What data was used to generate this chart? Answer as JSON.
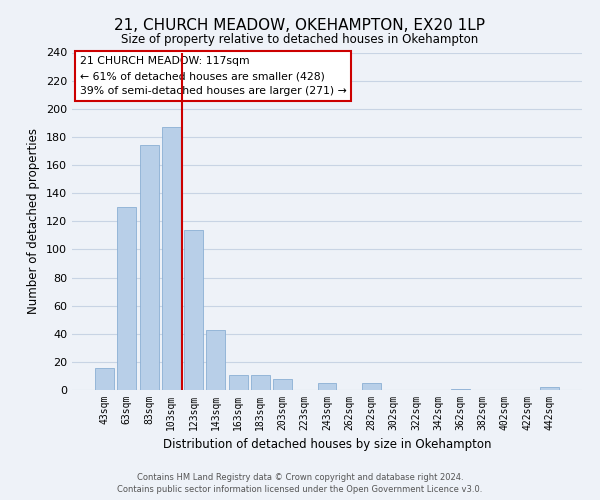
{
  "title": "21, CHURCH MEADOW, OKEHAMPTON, EX20 1LP",
  "subtitle": "Size of property relative to detached houses in Okehampton",
  "xlabel": "Distribution of detached houses by size in Okehampton",
  "ylabel": "Number of detached properties",
  "bar_labels": [
    "43sqm",
    "63sqm",
    "83sqm",
    "103sqm",
    "123sqm",
    "143sqm",
    "163sqm",
    "183sqm",
    "203sqm",
    "223sqm",
    "243sqm",
    "262sqm",
    "282sqm",
    "302sqm",
    "322sqm",
    "342sqm",
    "362sqm",
    "382sqm",
    "402sqm",
    "422sqm",
    "442sqm"
  ],
  "bar_values": [
    16,
    130,
    174,
    187,
    114,
    43,
    11,
    11,
    8,
    0,
    5,
    0,
    5,
    0,
    0,
    0,
    1,
    0,
    0,
    0,
    2
  ],
  "bar_color": "#b8cfe8",
  "bar_edge_color": "#8bafd4",
  "vline_color": "#cc0000",
  "vline_position": 3.5,
  "ylim": [
    0,
    240
  ],
  "yticks": [
    0,
    20,
    40,
    60,
    80,
    100,
    120,
    140,
    160,
    180,
    200,
    220,
    240
  ],
  "annotation_title": "21 CHURCH MEADOW: 117sqm",
  "annotation_line1": "← 61% of detached houses are smaller (428)",
  "annotation_line2": "39% of semi-detached houses are larger (271) →",
  "annotation_box_facecolor": "#ffffff",
  "annotation_box_edgecolor": "#cc0000",
  "footer_line1": "Contains HM Land Registry data © Crown copyright and database right 2024.",
  "footer_line2": "Contains public sector information licensed under the Open Government Licence v3.0.",
  "grid_color": "#c8d4e4",
  "background_color": "#eef2f8"
}
